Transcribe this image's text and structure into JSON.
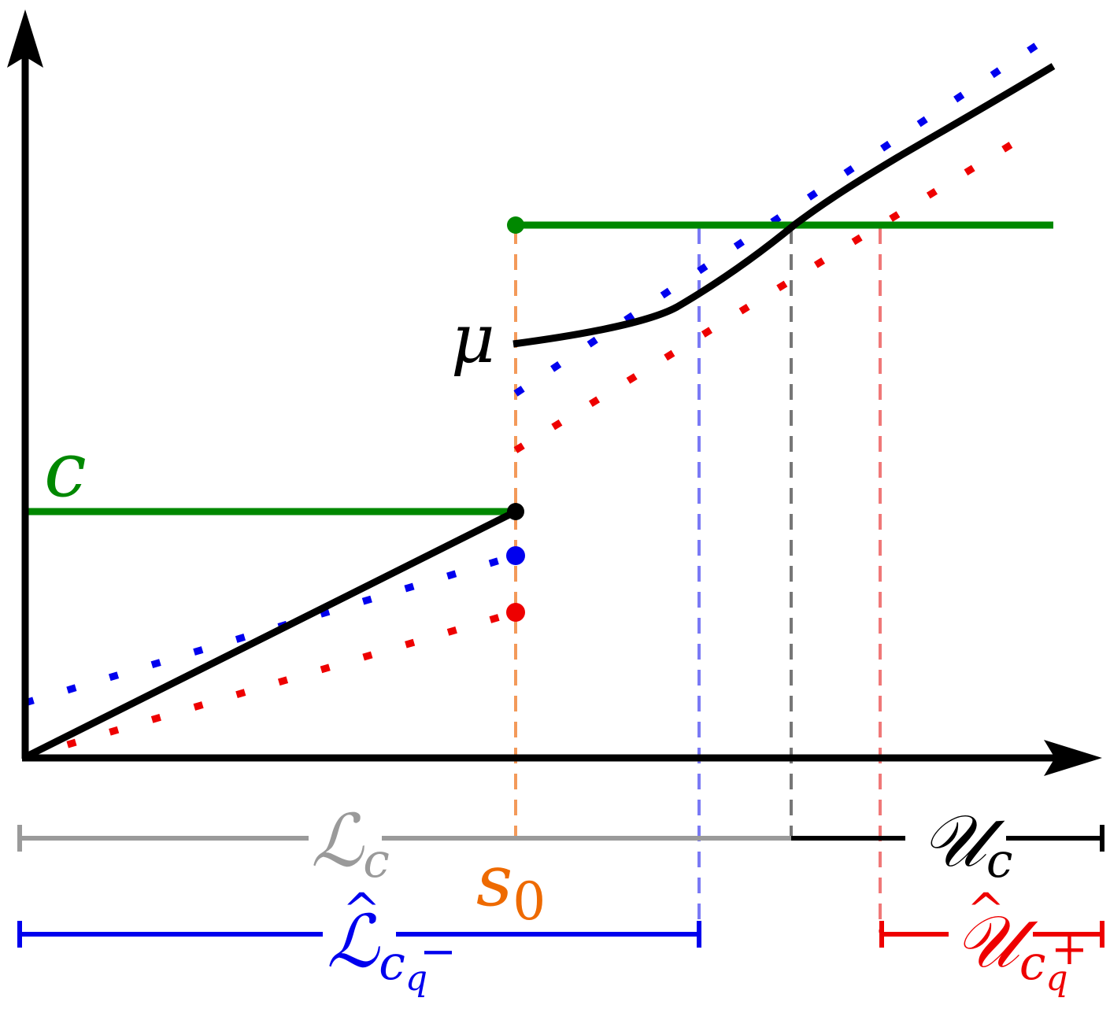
{
  "colors": {
    "axis": "#000000",
    "threshold": "#008800",
    "lower": "#0000ee",
    "upper": "#ee0000",
    "s0_marker": "#f39a5a",
    "s0_label": "#ee6a00",
    "lower_set_true": "#9a9a9a",
    "boundary_mid": "#777777"
  },
  "labels": {
    "mu": "μ",
    "c": "c",
    "s0_main": "s",
    "s0_sub": "0",
    "L_c_main": "ℒ",
    "L_c_sub": "c",
    "U_c_main": "𝒰",
    "U_c_sub": "c",
    "L_hat_main": "ℒ",
    "L_hat_hat": "^",
    "L_hat_sub": "c",
    "L_hat_subsub": "q",
    "L_hat_sup": "−",
    "U_hat_main": "𝒰",
    "U_hat_hat": "^",
    "U_hat_sub": "c",
    "U_hat_subsub": "q",
    "U_hat_sup": "+"
  },
  "icons": {
    "y_axis_arrow": "arrowhead-up",
    "x_axis_arrow": "arrowhead-right"
  }
}
